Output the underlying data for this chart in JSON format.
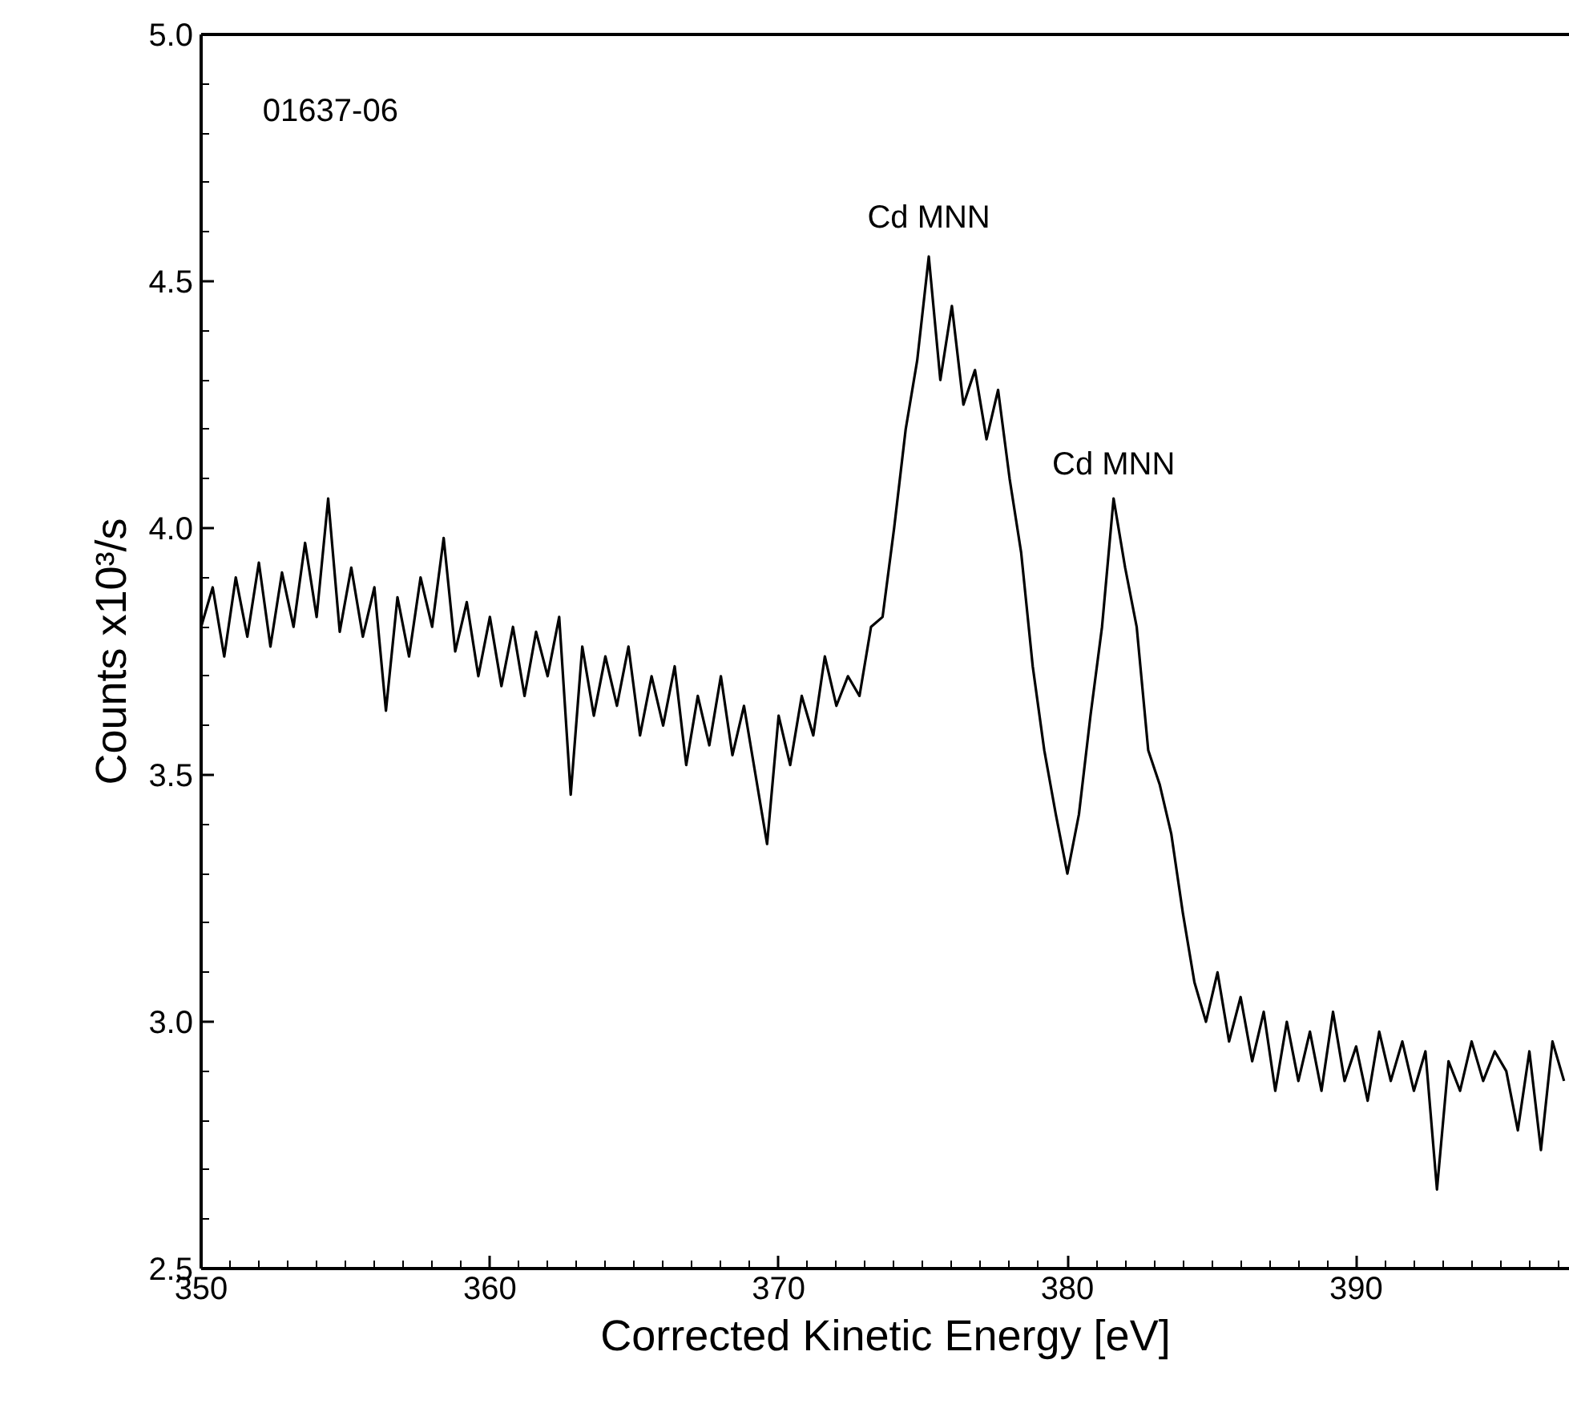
{
  "chart_data": {
    "type": "line",
    "xlabel": "Corrected Kinetic Energy [eV]",
    "ylabel": "Counts x10³/s",
    "annotations": [
      "01637-06",
      {
        "text": "Cd MNN",
        "x": 375.2,
        "y": 4.56
      },
      {
        "text": "Cd MNN",
        "x": 381.6,
        "y": 4.06
      }
    ],
    "xlim": [
      350,
      397.4
    ],
    "xticks": [
      350,
      360,
      370,
      380,
      390
    ],
    "ylim": [
      2.5,
      5.0
    ],
    "yticks": [
      {
        "value": 2.5,
        "label": "2.5"
      },
      {
        "value": 3.0,
        "label": "3.0"
      },
      {
        "value": 3.5,
        "label": "3.5"
      },
      {
        "value": 4.0,
        "label": "4.0"
      },
      {
        "value": 4.5,
        "label": "4.5"
      },
      {
        "value": 5.0,
        "label": "5.0"
      }
    ],
    "line_style": "solid",
    "series": [
      {
        "color": "#000000",
        "x": [
          350.0,
          350.4,
          350.8,
          351.2,
          351.6,
          352.0,
          352.4,
          352.8,
          353.2,
          353.6,
          354.0,
          354.4,
          354.8,
          355.2,
          355.6,
          356.0,
          356.4,
          356.8,
          357.2,
          357.6,
          358.0,
          358.4,
          358.8,
          359.2,
          359.6,
          360.0,
          360.4,
          360.8,
          361.2,
          361.6,
          362.0,
          362.4,
          362.8,
          363.2,
          363.6,
          364.0,
          364.4,
          364.8,
          365.2,
          365.6,
          366.0,
          366.4,
          366.8,
          367.2,
          367.6,
          368.0,
          368.4,
          368.8,
          369.2,
          369.6,
          370.0,
          370.4,
          370.8,
          371.2,
          371.6,
          372.0,
          372.4,
          372.8,
          373.2,
          373.6,
          374.0,
          374.4,
          374.8,
          375.2,
          375.6,
          376.0,
          376.4,
          376.8,
          377.2,
          377.6,
          378.0,
          378.4,
          378.8,
          379.2,
          379.6,
          380.0,
          380.4,
          380.8,
          381.2,
          381.6,
          382.0,
          382.4,
          382.8,
          383.2,
          383.6,
          384.0,
          384.4,
          384.8,
          385.2,
          385.6,
          386.0,
          386.4,
          386.8,
          387.2,
          387.6,
          388.0,
          388.4,
          388.8,
          389.2,
          389.6,
          390.0,
          390.4,
          390.8,
          391.2,
          391.6,
          392.0,
          392.4,
          392.8,
          393.2,
          393.6,
          394.0,
          394.4,
          394.8,
          395.2,
          395.6,
          396.0,
          396.4,
          396.8,
          397.2
        ],
        "values": [
          3.8,
          3.88,
          3.74,
          3.9,
          3.78,
          3.93,
          3.76,
          3.91,
          3.8,
          3.97,
          3.82,
          4.06,
          3.79,
          3.92,
          3.78,
          3.88,
          3.63,
          3.86,
          3.74,
          3.9,
          3.8,
          3.98,
          3.75,
          3.85,
          3.7,
          3.82,
          3.68,
          3.8,
          3.66,
          3.79,
          3.7,
          3.82,
          3.46,
          3.76,
          3.62,
          3.74,
          3.64,
          3.76,
          3.58,
          3.7,
          3.6,
          3.72,
          3.52,
          3.66,
          3.56,
          3.7,
          3.54,
          3.64,
          3.5,
          3.36,
          3.62,
          3.52,
          3.66,
          3.58,
          3.74,
          3.64,
          3.7,
          3.66,
          3.8,
          3.82,
          4.0,
          4.2,
          4.34,
          4.55,
          4.3,
          4.45,
          4.25,
          4.32,
          4.18,
          4.28,
          4.1,
          3.95,
          3.72,
          3.55,
          3.42,
          3.3,
          3.42,
          3.62,
          3.8,
          4.06,
          3.92,
          3.8,
          3.55,
          3.48,
          3.38,
          3.22,
          3.08,
          3.0,
          3.1,
          2.96,
          3.05,
          2.92,
          3.02,
          2.86,
          3.0,
          2.88,
          2.98,
          2.86,
          3.02,
          2.88,
          2.95,
          2.84,
          2.98,
          2.88,
          2.96,
          2.86,
          2.94,
          2.66,
          2.92,
          2.86,
          2.96,
          2.88,
          2.94,
          2.9,
          2.78,
          2.94,
          2.74,
          2.96,
          2.88
        ]
      }
    ]
  }
}
